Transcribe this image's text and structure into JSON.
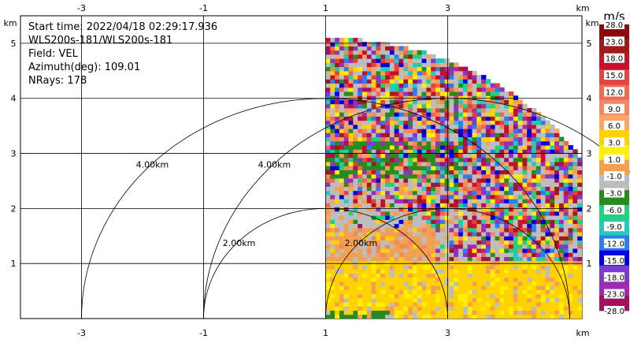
{
  "info": {
    "start_time": "Start time: 2022/04/18 02:29:17.936",
    "instrument": "WLS200s-181/WLS200s-181",
    "field": "Field: VEL",
    "azimuth": "Azimuth(deg): 109.01",
    "nrays": "NRays: 178"
  },
  "chart_data": {
    "type": "heatmap",
    "xlabel": "km",
    "ylabel": "km",
    "xlim": [
      -4.0,
      5.2
    ],
    "ylim": [
      0,
      5.5
    ],
    "x_ticks": [
      -3,
      -1,
      1,
      3
    ],
    "x_tick_labels": [
      "-3",
      "-1",
      "1",
      "3"
    ],
    "y_ticks": [
      1,
      2,
      3,
      4,
      5
    ],
    "y_tick_labels": [
      "1",
      "2",
      "3",
      "4",
      "5"
    ],
    "grid": true,
    "range_rings": [
      {
        "label": "2.00km",
        "radius_km": 2.0,
        "center": [
          1.0,
          0
        ]
      },
      {
        "label": "4.00km",
        "radius_km": 4.0,
        "center": [
          1.0,
          0
        ]
      },
      {
        "label": "2.00km",
        "radius_km": 2.0,
        "center": [
          3.0,
          0
        ]
      },
      {
        "label": "4.00km",
        "radius_km": 4.0,
        "center": [
          3.0,
          0
        ]
      }
    ],
    "sector": {
      "x_min_km": 1.0,
      "max_range_km": 5.1,
      "center": [
        1.0,
        0
      ]
    },
    "colorbar": {
      "units": "m/s",
      "labels": [
        "28.0",
        "23.0",
        "18.0",
        "15.0",
        "12.0",
        "9.0",
        "6.0",
        "3.0",
        "1.0",
        "-1.0",
        "-3.0",
        "-6.0",
        "-9.0",
        "-12.0",
        "-15.0",
        "-18.0",
        "-23.0",
        "-28.0"
      ],
      "colors": [
        "#8b0a0a",
        "#a11a1a",
        "#c8102e",
        "#e2433b",
        "#f0684f",
        "#f4875f",
        "#f7a568",
        "#ffd200",
        "#fff000",
        "#f3a050",
        "#bdbdbd",
        "#278c1e",
        "#22d17f",
        "#25c9c2",
        "#2a7ff0",
        "#0000e6",
        "#7a3ccc",
        "#9d2bb4",
        "#a0125f"
      ]
    }
  }
}
